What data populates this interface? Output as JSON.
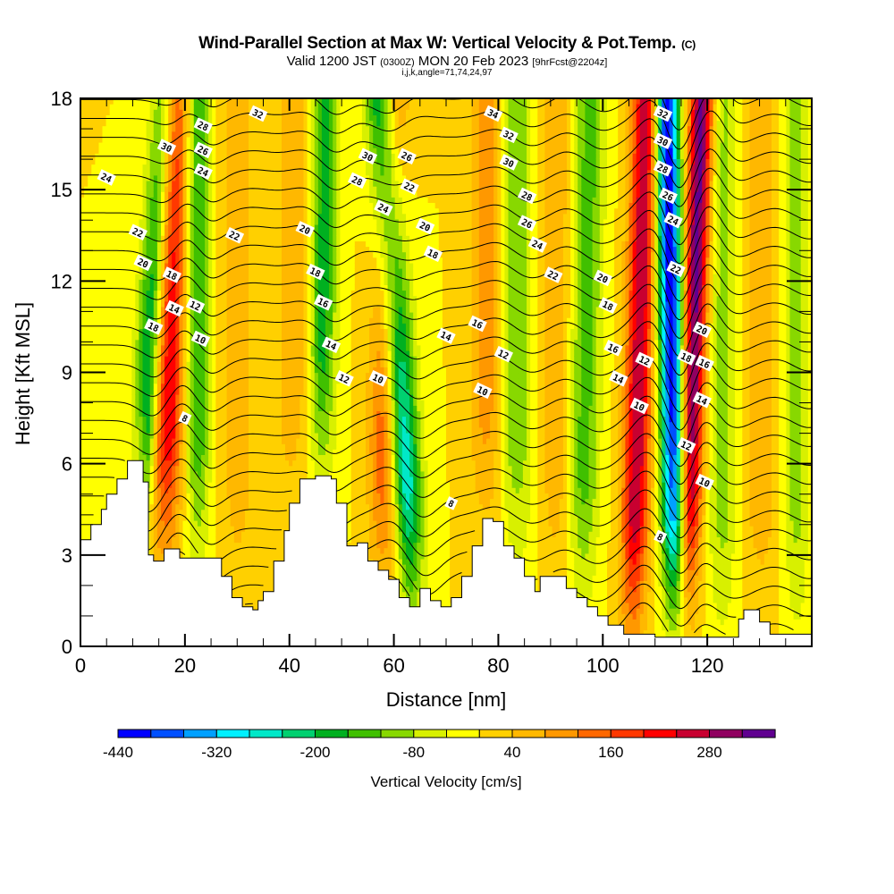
{
  "header": {
    "title": "Wind-Parallel Section at Max W: Vertical Velocity & Pot.Temp.",
    "title_suffix": "(C)",
    "valid_prefix": "Valid 1200 JST",
    "valid_utc": "(0300Z)",
    "valid_date": "MON 20 Feb 2023",
    "forecast": "[9hrFcst@2204z]",
    "grid_info": "i,j,k,angle=71,74,24,97"
  },
  "chart_data": {
    "type": "heatmap",
    "title": "Wind-Parallel Section at Max W: Vertical Velocity & Pot.Temp.",
    "xlabel": "Distance [nm]",
    "ylabel": "Height [Kft MSL]",
    "xlim": [
      0,
      140
    ],
    "ylim": [
      0,
      18
    ],
    "xticks": [
      0,
      20,
      40,
      60,
      80,
      100,
      120
    ],
    "yticks": [
      0,
      3,
      6,
      9,
      12,
      15,
      18
    ],
    "x_minor_step": 5,
    "y_minor_step": 1,
    "colorbar": {
      "title": "Vertical Velocity [cm/s]",
      "placement": "bottom",
      "levels": [
        -440,
        -400,
        -360,
        -320,
        -280,
        -240,
        -200,
        -160,
        -120,
        -80,
        -40,
        0,
        40,
        80,
        120,
        160,
        200,
        240,
        280,
        320,
        360
      ],
      "tick_labels": [
        -440,
        -320,
        -200,
        -80,
        40,
        160,
        280
      ],
      "colors": [
        "#0000ff",
        "#0050ff",
        "#00a0ff",
        "#00f0ff",
        "#00e8c8",
        "#00d070",
        "#00b020",
        "#40c000",
        "#88d800",
        "#d8f000",
        "#ffff00",
        "#ffd000",
        "#ffb800",
        "#ff9800",
        "#ff6800",
        "#ff3800",
        "#ff0000",
        "#c80030",
        "#900060",
        "#600090"
      ]
    },
    "vertical_velocity_bands": [
      {
        "x_surface": 11,
        "tilt_nm_per_kft": 0.35,
        "peak_cm_s": -240,
        "width_nm": 2.6
      },
      {
        "x_surface": 16,
        "tilt_nm_per_kft": 0.12,
        "peak_cm_s": 260,
        "width_nm": 3.0
      },
      {
        "x_surface": 22.5,
        "tilt_nm_per_kft": 0.0,
        "peak_cm_s": -160,
        "width_nm": 2.4
      },
      {
        "x_surface": 30,
        "tilt_nm_per_kft": 0.0,
        "peak_cm_s": 60,
        "width_nm": 3.5
      },
      {
        "x_surface": 41,
        "tilt_nm_per_kft": 0.0,
        "peak_cm_s": 80,
        "width_nm": 3.0
      },
      {
        "x_surface": 46,
        "tilt_nm_per_kft": 0.05,
        "peak_cm_s": -180,
        "width_nm": 2.5
      },
      {
        "x_surface": 58,
        "tilt_nm_per_kft": 0.1,
        "peak_cm_s": 200,
        "width_nm": 3.0
      },
      {
        "x_surface": 63,
        "tilt_nm_per_kft": -0.35,
        "peak_cm_s": -300,
        "width_nm": 3.0
      },
      {
        "x_surface": 78,
        "tilt_nm_per_kft": 0.0,
        "peak_cm_s": 120,
        "width_nm": 3.0
      },
      {
        "x_surface": 83,
        "tilt_nm_per_kft": 0.0,
        "peak_cm_s": -120,
        "width_nm": 3.5
      },
      {
        "x_surface": 91,
        "tilt_nm_per_kft": 0.0,
        "peak_cm_s": 80,
        "width_nm": 3.0
      },
      {
        "x_surface": 96,
        "tilt_nm_per_kft": 0.1,
        "peak_cm_s": -140,
        "width_nm": 3.0
      },
      {
        "x_surface": 106,
        "tilt_nm_per_kft": 0.15,
        "peak_cm_s": 280,
        "width_nm": 2.6
      },
      {
        "x_surface": 114,
        "tilt_nm_per_kft": -0.12,
        "peak_cm_s": -440,
        "width_nm": 2.4
      },
      {
        "x_surface": 116,
        "tilt_nm_per_kft": 0.2,
        "peak_cm_s": 340,
        "width_nm": 2.4
      },
      {
        "x_surface": 123,
        "tilt_nm_per_kft": 0.0,
        "peak_cm_s": -100,
        "width_nm": 3.0
      },
      {
        "x_surface": 130,
        "tilt_nm_per_kft": 0.0,
        "peak_cm_s": 60,
        "width_nm": 4.0
      },
      {
        "x_surface": 137,
        "tilt_nm_per_kft": 0.0,
        "peak_cm_s": -100,
        "width_nm": 2.5
      }
    ],
    "terrain": {
      "x": [
        0,
        2,
        4,
        5,
        7,
        9,
        11,
        12,
        13,
        14,
        16,
        19,
        25,
        27,
        29,
        31,
        33,
        34,
        35,
        37,
        39,
        40,
        42,
        45,
        48,
        49,
        51,
        53,
        55,
        57,
        59,
        61,
        63,
        65,
        67,
        69,
        71,
        73,
        75,
        77,
        79,
        81,
        83,
        85,
        87,
        88,
        91,
        93,
        95,
        97,
        99,
        101,
        104,
        110,
        124,
        126,
        127,
        130,
        132,
        140
      ],
      "height_kft": [
        3.5,
        4.0,
        4.5,
        5.0,
        5.5,
        6.1,
        6.1,
        5.4,
        3.0,
        2.8,
        3.2,
        2.9,
        2.9,
        2.3,
        1.6,
        1.3,
        1.2,
        1.5,
        1.8,
        2.8,
        3.8,
        4.7,
        5.5,
        5.6,
        5.5,
        4.7,
        3.3,
        3.4,
        2.8,
        2.5,
        2.2,
        1.6,
        1.3,
        1.9,
        1.5,
        1.3,
        1.6,
        2.3,
        3.3,
        4.2,
        4.1,
        3.3,
        2.9,
        2.3,
        1.8,
        2.3,
        2.3,
        1.9,
        1.6,
        1.3,
        1.0,
        0.7,
        0.4,
        0.3,
        0.3,
        0.9,
        1.2,
        0.8,
        0.4,
        0.4
      ]
    },
    "theta_contours": {
      "interval": 1,
      "min": 7,
      "max": 35,
      "labels": [
        {
          "x": 5,
          "y": 15.4,
          "text": "24"
        },
        {
          "x": 11,
          "y": 13.6,
          "text": "22"
        },
        {
          "x": 12,
          "y": 12.6,
          "text": "20"
        },
        {
          "x": 14,
          "y": 10.5,
          "text": "18"
        },
        {
          "x": 17.5,
          "y": 12.2,
          "text": "18"
        },
        {
          "x": 18,
          "y": 11.1,
          "text": "14"
        },
        {
          "x": 22,
          "y": 11.2,
          "text": "12"
        },
        {
          "x": 23,
          "y": 10.1,
          "text": "10"
        },
        {
          "x": 20,
          "y": 7.5,
          "text": "8"
        },
        {
          "x": 16.5,
          "y": 16.4,
          "text": "30"
        },
        {
          "x": 23.5,
          "y": 17.1,
          "text": "28"
        },
        {
          "x": 23.5,
          "y": 16.3,
          "text": "26"
        },
        {
          "x": 23.5,
          "y": 15.6,
          "text": "24"
        },
        {
          "x": 29.5,
          "y": 13.5,
          "text": "22"
        },
        {
          "x": 34,
          "y": 17.5,
          "text": "32"
        },
        {
          "x": 43,
          "y": 13.7,
          "text": "20"
        },
        {
          "x": 45,
          "y": 12.3,
          "text": "18"
        },
        {
          "x": 46.5,
          "y": 11.3,
          "text": "16"
        },
        {
          "x": 48,
          "y": 9.9,
          "text": "14"
        },
        {
          "x": 50.5,
          "y": 8.8,
          "text": "12"
        },
        {
          "x": 57,
          "y": 8.8,
          "text": "10"
        },
        {
          "x": 55,
          "y": 16.1,
          "text": "30"
        },
        {
          "x": 53,
          "y": 15.3,
          "text": "28"
        },
        {
          "x": 58,
          "y": 14.4,
          "text": "24"
        },
        {
          "x": 62.5,
          "y": 16.1,
          "text": "26"
        },
        {
          "x": 63,
          "y": 15.1,
          "text": "22"
        },
        {
          "x": 66,
          "y": 13.8,
          "text": "20"
        },
        {
          "x": 67.5,
          "y": 12.9,
          "text": "18"
        },
        {
          "x": 70,
          "y": 10.2,
          "text": "14"
        },
        {
          "x": 76,
          "y": 10.6,
          "text": "16"
        },
        {
          "x": 81,
          "y": 9.6,
          "text": "12"
        },
        {
          "x": 77,
          "y": 8.4,
          "text": "10"
        },
        {
          "x": 71,
          "y": 4.7,
          "text": "8"
        },
        {
          "x": 79,
          "y": 17.5,
          "text": "34"
        },
        {
          "x": 82,
          "y": 16.8,
          "text": "32"
        },
        {
          "x": 82,
          "y": 15.9,
          "text": "30"
        },
        {
          "x": 85.5,
          "y": 14.8,
          "text": "28"
        },
        {
          "x": 85.5,
          "y": 13.9,
          "text": "26"
        },
        {
          "x": 87.5,
          "y": 13.2,
          "text": "24"
        },
        {
          "x": 90.5,
          "y": 12.2,
          "text": "22"
        },
        {
          "x": 100,
          "y": 12.1,
          "text": "20"
        },
        {
          "x": 101,
          "y": 11.2,
          "text": "18"
        },
        {
          "x": 102,
          "y": 9.8,
          "text": "16"
        },
        {
          "x": 103,
          "y": 8.8,
          "text": "14"
        },
        {
          "x": 108,
          "y": 9.4,
          "text": "12"
        },
        {
          "x": 107,
          "y": 7.9,
          "text": "10"
        },
        {
          "x": 111,
          "y": 3.6,
          "text": "8"
        },
        {
          "x": 111.5,
          "y": 17.5,
          "text": "32"
        },
        {
          "x": 111.5,
          "y": 16.6,
          "text": "30"
        },
        {
          "x": 111.5,
          "y": 15.7,
          "text": "28"
        },
        {
          "x": 112.5,
          "y": 14.8,
          "text": "26"
        },
        {
          "x": 113.5,
          "y": 14.0,
          "text": "24"
        },
        {
          "x": 114,
          "y": 12.4,
          "text": "22"
        },
        {
          "x": 119,
          "y": 10.4,
          "text": "20"
        },
        {
          "x": 116,
          "y": 9.5,
          "text": "18"
        },
        {
          "x": 119.5,
          "y": 9.3,
          "text": "16"
        },
        {
          "x": 119,
          "y": 8.1,
          "text": "14"
        },
        {
          "x": 116,
          "y": 6.6,
          "text": "12"
        },
        {
          "x": 119.5,
          "y": 5.4,
          "text": "10"
        }
      ]
    }
  }
}
